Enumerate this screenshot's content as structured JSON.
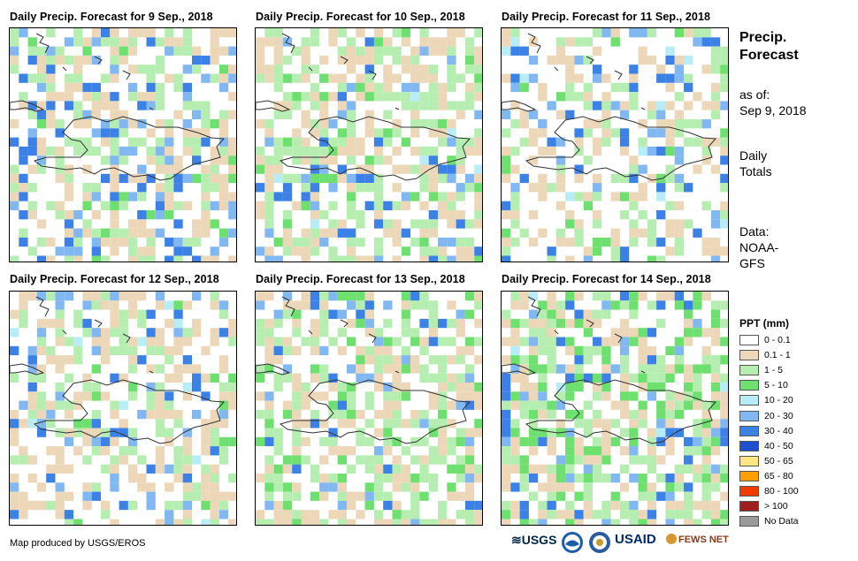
{
  "panels": [
    {
      "title": "Daily Precip. Forecast for 9 Sep., 2018"
    },
    {
      "title": "Daily Precip. Forecast for 10 Sep., 2018"
    },
    {
      "title": "Daily Precip. Forecast for 11 Sep., 2018"
    },
    {
      "title": "Daily Precip. Forecast for 12 Sep., 2018"
    },
    {
      "title": "Daily Precip. Forecast for 13 Sep., 2018"
    },
    {
      "title": "Daily Precip. Forecast for 14 Sep., 2018"
    }
  ],
  "sidebar": {
    "title_line1": "Precip.",
    "title_line2": "Forecast",
    "asof_line1": "as of:",
    "asof_line2": "Sep 9, 2018",
    "totals_line1": "Daily",
    "totals_line2": "Totals",
    "data_line1": "Data:",
    "data_line2": "NOAA-",
    "data_line3": "GFS"
  },
  "legend": {
    "title": "PPT (mm)",
    "classes": [
      {
        "label": "0 - 0.1",
        "color": "#ffffff"
      },
      {
        "label": "0.1 - 1",
        "color": "#ecd8b8"
      },
      {
        "label": "1 - 5",
        "color": "#b6eeb2"
      },
      {
        "label": "5 - 10",
        "color": "#6ee070"
      },
      {
        "label": "10 - 20",
        "color": "#b8ecf6"
      },
      {
        "label": "20 - 30",
        "color": "#82b8f2"
      },
      {
        "label": "30 - 40",
        "color": "#3c82e6"
      },
      {
        "label": "40 - 50",
        "color": "#1e50d2"
      },
      {
        "label": "50 - 65",
        "color": "#ffe682"
      },
      {
        "label": "65 - 80",
        "color": "#ffa000"
      },
      {
        "label": "80 - 100",
        "color": "#f03c00"
      },
      {
        "label": "> 100",
        "color": "#a01e1e"
      },
      {
        "label": "No Data",
        "color": "#9b9b9b"
      }
    ]
  },
  "footer": {
    "credit": "Map produced by USGS/EROS",
    "logos": [
      "USGS",
      "NOAA",
      "U.S. Department of Commerce",
      "USAID",
      "FEWS NET"
    ],
    "logo_usgs": "≋USGS",
    "logo_usaid": "USAID",
    "logo_fews": "FEWS NET"
  }
}
